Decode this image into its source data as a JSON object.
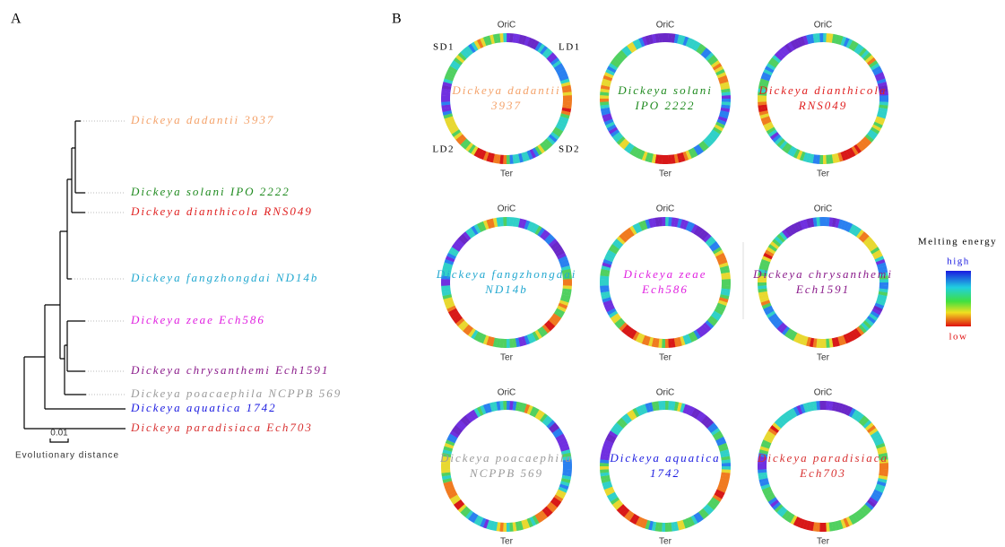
{
  "panel_a": {
    "label": "A",
    "leaves": [
      {
        "name": "Dickeya dadantii 3937",
        "color": "#f4a26a"
      },
      {
        "name": "Dickeya solani IPO 2222",
        "color": "#1e8a1e"
      },
      {
        "name": "Dickeya dianthicola RNS049",
        "color": "#e02020"
      },
      {
        "name": "Dickeya fangzhongdai ND14b",
        "color": "#22a8d0"
      },
      {
        "name": "Dickeya zeae Ech586",
        "color": "#e020e0"
      },
      {
        "name": "Dickeya chrysanthemi Ech1591",
        "color": "#8a1a8a"
      },
      {
        "name": "Dickeya poacaephila NCPPB 569",
        "color": "#9a9a9a"
      },
      {
        "name": "Dickeya aquatica 1742",
        "color": "#1a1ae0"
      },
      {
        "name": "Dickeya paradisiaca Ech703",
        "color": "#d83030"
      }
    ],
    "scale_label": "0.01",
    "axis_label": "Evolutionary distance"
  },
  "panel_b": {
    "label": "B",
    "ori_label": "OriC",
    "ter_label": "Ter",
    "region_labels": [
      "SD1",
      "LD1",
      "LD2",
      "SD2"
    ],
    "genomes": [
      {
        "lines": [
          "Dickeya dadantii",
          "3937"
        ],
        "color": "#f4a26a"
      },
      {
        "lines": [
          "Dickeya solani",
          "IPO 2222"
        ],
        "color": "#1e8a1e"
      },
      {
        "lines": [
          "Dickeya dianthicola",
          "RNS049"
        ],
        "color": "#e02020"
      },
      {
        "lines": [
          "Dickeya fangzhongdai",
          "ND14b"
        ],
        "color": "#22a8d0"
      },
      {
        "lines": [
          "Dickeya zeae",
          "Ech586"
        ],
        "color": "#e020e0"
      },
      {
        "lines": [
          "Dickeya chrysanthemi",
          "Ech1591"
        ],
        "color": "#8a1a8a"
      },
      {
        "lines": [
          "Dickeya poacaephila",
          "NCPPB 569"
        ],
        "color": "#9a9a9a"
      },
      {
        "lines": [
          "Dickeya aquatica",
          "1742"
        ],
        "color": "#1a1ae0"
      },
      {
        "lines": [
          "Dickeya paradisiaca",
          "Ech703"
        ],
        "color": "#d83030"
      }
    ],
    "legend": {
      "title": "Melting energy",
      "high": "high",
      "low": "low"
    }
  }
}
